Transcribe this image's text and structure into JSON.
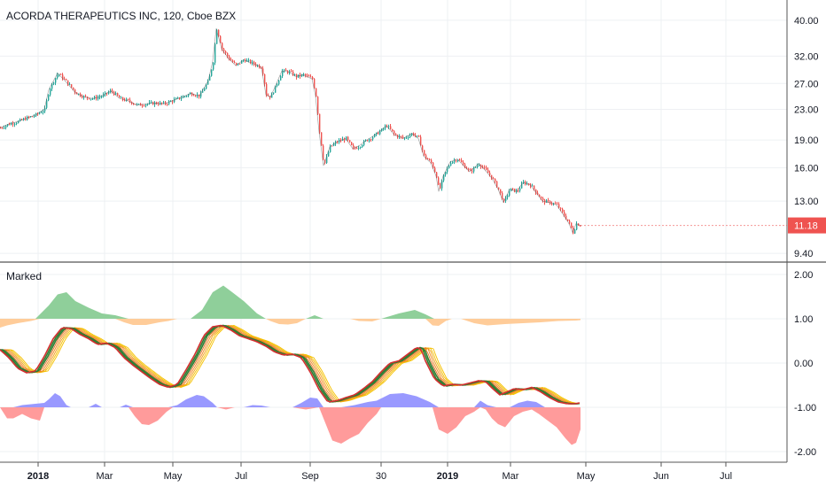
{
  "chart_data": [
    {
      "type": "candlestick",
      "title": "ACORDA THERAPEUTICS INC, 120, Cboe BZX",
      "y_scale": "log",
      "y_ticks": [
        "40.00",
        "32.00",
        "27.00",
        "23.00",
        "19.00",
        "16.00",
        "13.00",
        "9.40"
      ],
      "y_tick_values": [
        40,
        32,
        27,
        23,
        19,
        16,
        13,
        9.4
      ],
      "ylim": [
        9.1,
        42
      ],
      "last_price": "11.18",
      "last_price_value": 11.18,
      "close_path": [
        [
          0,
          20.5
        ],
        [
          10,
          21.0
        ],
        [
          20,
          21.3
        ],
        [
          30,
          21.8
        ],
        [
          40,
          22.2
        ],
        [
          50,
          23.0
        ],
        [
          55,
          26.0
        ],
        [
          65,
          28.8
        ],
        [
          75,
          27.2
        ],
        [
          85,
          25.5
        ],
        [
          95,
          24.8
        ],
        [
          105,
          24.6
        ],
        [
          115,
          25.0
        ],
        [
          125,
          25.8
        ],
        [
          135,
          24.6
        ],
        [
          145,
          24.2
        ],
        [
          155,
          23.6
        ],
        [
          165,
          23.8
        ],
        [
          175,
          23.9
        ],
        [
          185,
          23.8
        ],
        [
          195,
          24.3
        ],
        [
          205,
          24.8
        ],
        [
          215,
          25.4
        ],
        [
          225,
          25.0
        ],
        [
          235,
          27.5
        ],
        [
          240,
          31.0
        ],
        [
          244,
          38.0
        ],
        [
          250,
          33.5
        ],
        [
          258,
          31.5
        ],
        [
          266,
          30.2
        ],
        [
          275,
          31.3
        ],
        [
          285,
          30.6
        ],
        [
          295,
          29.8
        ],
        [
          300,
          25.2
        ],
        [
          305,
          24.8
        ],
        [
          312,
          27.0
        ],
        [
          318,
          29.2
        ],
        [
          326,
          29.0
        ],
        [
          334,
          28.2
        ],
        [
          342,
          28.5
        ],
        [
          352,
          27.8
        ],
        [
          356,
          25.0
        ],
        [
          360,
          20.0
        ],
        [
          365,
          16.2
        ],
        [
          372,
          18.2
        ],
        [
          380,
          18.8
        ],
        [
          390,
          19.2
        ],
        [
          398,
          18.0
        ],
        [
          405,
          18.3
        ],
        [
          412,
          18.9
        ],
        [
          420,
          19.4
        ],
        [
          430,
          20.2
        ],
        [
          436,
          20.8
        ],
        [
          445,
          19.6
        ],
        [
          455,
          19.2
        ],
        [
          465,
          19.8
        ],
        [
          472,
          19.2
        ],
        [
          478,
          17.2
        ],
        [
          486,
          16.5
        ],
        [
          492,
          15.2
        ],
        [
          495,
          13.8
        ],
        [
          500,
          15.2
        ],
        [
          508,
          16.6
        ],
        [
          516,
          16.9
        ],
        [
          522,
          16.3
        ],
        [
          530,
          15.6
        ],
        [
          540,
          16.4
        ],
        [
          546,
          15.9
        ],
        [
          555,
          15.0
        ],
        [
          562,
          14.0
        ],
        [
          568,
          12.9
        ],
        [
          575,
          14.0
        ],
        [
          583,
          13.8
        ],
        [
          590,
          14.6
        ],
        [
          598,
          14.4
        ],
        [
          605,
          13.7
        ],
        [
          612,
          13.0
        ],
        [
          620,
          12.9
        ],
        [
          628,
          12.7
        ],
        [
          635,
          12.0
        ],
        [
          642,
          11.3
        ],
        [
          646,
          10.7
        ],
        [
          650,
          11.3
        ],
        [
          655,
          11.18
        ]
      ]
    },
    {
      "type": "oscillator",
      "title": "Marked",
      "y_ticks": [
        "2.00",
        "1.00",
        "0.00",
        "-1.00",
        "-2.00"
      ],
      "y_tick_values": [
        2,
        1,
        0,
        -1,
        -2
      ],
      "ylim": [
        -2.2,
        2.2
      ],
      "green_area": [
        [
          0,
          1.0
        ],
        [
          40,
          1.0
        ],
        [
          55,
          1.3
        ],
        [
          65,
          1.55
        ],
        [
          75,
          1.6
        ],
        [
          85,
          1.4
        ],
        [
          100,
          1.25
        ],
        [
          115,
          1.12
        ],
        [
          130,
          1.08
        ],
        [
          145,
          1.0
        ],
        [
          215,
          1.0
        ],
        [
          228,
          1.2
        ],
        [
          240,
          1.6
        ],
        [
          252,
          1.75
        ],
        [
          262,
          1.6
        ],
        [
          275,
          1.4
        ],
        [
          290,
          1.12
        ],
        [
          300,
          1.0
        ],
        [
          345,
          1.0
        ],
        [
          355,
          1.08
        ],
        [
          365,
          1.0
        ],
        [
          430,
          1.0
        ],
        [
          450,
          1.12
        ],
        [
          468,
          1.2
        ],
        [
          480,
          1.1
        ],
        [
          490,
          1.0
        ],
        [
          655,
          1.0
        ]
      ],
      "orange_area": [
        [
          0,
          0.8
        ],
        [
          8,
          0.85
        ],
        [
          20,
          0.9
        ],
        [
          35,
          0.95
        ],
        [
          45,
          1.0
        ],
        [
          130,
          1.0
        ],
        [
          140,
          0.92
        ],
        [
          150,
          0.86
        ],
        [
          165,
          0.86
        ],
        [
          180,
          0.92
        ],
        [
          190,
          0.95
        ],
        [
          200,
          1.0
        ],
        [
          300,
          1.0
        ],
        [
          305,
          0.95
        ],
        [
          315,
          0.88
        ],
        [
          325,
          0.87
        ],
        [
          335,
          0.9
        ],
        [
          345,
          1.0
        ],
        [
          395,
          1.0
        ],
        [
          405,
          0.95
        ],
        [
          420,
          0.94
        ],
        [
          430,
          1.0
        ],
        [
          480,
          1.0
        ],
        [
          488,
          0.85
        ],
        [
          495,
          0.84
        ],
        [
          503,
          0.95
        ],
        [
          510,
          1.0
        ],
        [
          520,
          1.0
        ],
        [
          535,
          0.9
        ],
        [
          550,
          0.85
        ],
        [
          570,
          0.88
        ],
        [
          590,
          0.9
        ],
        [
          610,
          0.92
        ],
        [
          630,
          0.95
        ],
        [
          650,
          0.96
        ],
        [
          655,
          0.97
        ]
      ],
      "blue_area": [
        [
          0,
          -1.0
        ],
        [
          15,
          -1.0
        ],
        [
          25,
          -0.95
        ],
        [
          40,
          -0.92
        ],
        [
          50,
          -0.9
        ],
        [
          55,
          -0.82
        ],
        [
          62,
          -0.68
        ],
        [
          68,
          -0.75
        ],
        [
          75,
          -0.95
        ],
        [
          80,
          -1.0
        ],
        [
          100,
          -1.0
        ],
        [
          108,
          -0.92
        ],
        [
          115,
          -1.0
        ],
        [
          135,
          -1.0
        ],
        [
          142,
          -0.94
        ],
        [
          150,
          -1.0
        ],
        [
          190,
          -1.0
        ],
        [
          200,
          -0.95
        ],
        [
          210,
          -0.82
        ],
        [
          222,
          -0.72
        ],
        [
          230,
          -0.75
        ],
        [
          240,
          -0.9
        ],
        [
          245,
          -1.0
        ],
        [
          275,
          -1.0
        ],
        [
          285,
          -0.95
        ],
        [
          295,
          -0.96
        ],
        [
          305,
          -1.0
        ],
        [
          330,
          -1.0
        ],
        [
          340,
          -0.9
        ],
        [
          350,
          -0.78
        ],
        [
          358,
          -0.8
        ],
        [
          365,
          -1.0
        ],
        [
          385,
          -1.0
        ],
        [
          400,
          -0.95
        ],
        [
          415,
          -0.88
        ],
        [
          425,
          -0.85
        ],
        [
          440,
          -0.7
        ],
        [
          455,
          -0.68
        ],
        [
          470,
          -0.75
        ],
        [
          485,
          -0.88
        ],
        [
          495,
          -1.0
        ],
        [
          535,
          -1.0
        ],
        [
          542,
          -0.85
        ],
        [
          550,
          -0.95
        ],
        [
          560,
          -1.0
        ],
        [
          575,
          -1.0
        ],
        [
          585,
          -0.9
        ],
        [
          595,
          -0.85
        ],
        [
          605,
          -0.88
        ],
        [
          615,
          -1.0
        ],
        [
          655,
          -1.0
        ]
      ],
      "red_area": [
        [
          0,
          -1.0
        ],
        [
          8,
          -1.25
        ],
        [
          15,
          -1.25
        ],
        [
          25,
          -1.15
        ],
        [
          35,
          -1.25
        ],
        [
          45,
          -1.3
        ],
        [
          50,
          -1.0
        ],
        [
          145,
          -1.0
        ],
        [
          152,
          -1.2
        ],
        [
          160,
          -1.38
        ],
        [
          168,
          -1.4
        ],
        [
          178,
          -1.3
        ],
        [
          188,
          -1.1
        ],
        [
          195,
          -1.0
        ],
        [
          245,
          -1.0
        ],
        [
          255,
          -1.05
        ],
        [
          265,
          -1.0
        ],
        [
          330,
          -1.0
        ],
        [
          345,
          -1.05
        ],
        [
          360,
          -1.0
        ],
        [
          366,
          -1.3
        ],
        [
          375,
          -1.75
        ],
        [
          385,
          -1.82
        ],
        [
          395,
          -1.7
        ],
        [
          405,
          -1.6
        ],
        [
          415,
          -1.35
        ],
        [
          425,
          -1.15
        ],
        [
          430,
          -1.0
        ],
        [
          488,
          -1.0
        ],
        [
          495,
          -1.5
        ],
        [
          505,
          -1.6
        ],
        [
          515,
          -1.45
        ],
        [
          525,
          -1.2
        ],
        [
          535,
          -1.1
        ],
        [
          542,
          -1.0
        ],
        [
          548,
          -1.05
        ],
        [
          555,
          -1.25
        ],
        [
          562,
          -1.38
        ],
        [
          570,
          -1.45
        ],
        [
          580,
          -1.2
        ],
        [
          590,
          -1.1
        ],
        [
          600,
          -1.05
        ],
        [
          608,
          -1.15
        ],
        [
          618,
          -1.3
        ],
        [
          628,
          -1.45
        ],
        [
          638,
          -1.7
        ],
        [
          645,
          -1.85
        ],
        [
          650,
          -1.8
        ],
        [
          655,
          -1.5
        ]
      ],
      "ribbon": [
        [
          0,
          0.3
        ],
        [
          10,
          0.12
        ],
        [
          20,
          -0.12
        ],
        [
          30,
          -0.22
        ],
        [
          40,
          -0.18
        ],
        [
          50,
          0.15
        ],
        [
          60,
          0.55
        ],
        [
          70,
          0.8
        ],
        [
          80,
          0.78
        ],
        [
          90,
          0.65
        ],
        [
          100,
          0.55
        ],
        [
          110,
          0.42
        ],
        [
          120,
          0.45
        ],
        [
          130,
          0.35
        ],
        [
          140,
          0.12
        ],
        [
          150,
          -0.05
        ],
        [
          160,
          -0.2
        ],
        [
          170,
          -0.35
        ],
        [
          180,
          -0.48
        ],
        [
          190,
          -0.55
        ],
        [
          200,
          -0.48
        ],
        [
          210,
          -0.15
        ],
        [
          220,
          0.2
        ],
        [
          230,
          0.62
        ],
        [
          240,
          0.82
        ],
        [
          250,
          0.85
        ],
        [
          260,
          0.75
        ],
        [
          270,
          0.62
        ],
        [
          280,
          0.55
        ],
        [
          290,
          0.48
        ],
        [
          300,
          0.38
        ],
        [
          310,
          0.25
        ],
        [
          320,
          0.18
        ],
        [
          330,
          0.2
        ],
        [
          340,
          0.12
        ],
        [
          350,
          -0.2
        ],
        [
          360,
          -0.6
        ],
        [
          370,
          -0.88
        ],
        [
          380,
          -0.85
        ],
        [
          390,
          -0.78
        ],
        [
          400,
          -0.72
        ],
        [
          410,
          -0.58
        ],
        [
          420,
          -0.42
        ],
        [
          430,
          -0.2
        ],
        [
          440,
          0.0
        ],
        [
          450,
          0.05
        ],
        [
          460,
          0.2
        ],
        [
          470,
          0.35
        ],
        [
          475,
          0.32
        ],
        [
          480,
          0.05
        ],
        [
          490,
          -0.35
        ],
        [
          500,
          -0.52
        ],
        [
          510,
          -0.48
        ],
        [
          520,
          -0.5
        ],
        [
          530,
          -0.45
        ],
        [
          540,
          -0.4
        ],
        [
          548,
          -0.42
        ],
        [
          556,
          -0.58
        ],
        [
          564,
          -0.72
        ],
        [
          572,
          -0.65
        ],
        [
          580,
          -0.58
        ],
        [
          590,
          -0.6
        ],
        [
          600,
          -0.55
        ],
        [
          610,
          -0.65
        ],
        [
          620,
          -0.78
        ],
        [
          630,
          -0.88
        ],
        [
          640,
          -0.92
        ],
        [
          648,
          -0.92
        ],
        [
          655,
          -0.9
        ]
      ]
    }
  ],
  "x_axis": {
    "labels": [
      {
        "text": "2018",
        "bold": true,
        "x": 43
      },
      {
        "text": "Mar",
        "bold": false,
        "x": 118
      },
      {
        "text": "May",
        "bold": false,
        "x": 195
      },
      {
        "text": "Jul",
        "bold": false,
        "x": 272
      },
      {
        "text": "Sep",
        "bold": false,
        "x": 350
      },
      {
        "text": "30",
        "bold": false,
        "x": 430
      },
      {
        "text": "2019",
        "bold": true,
        "x": 505
      },
      {
        "text": "Mar",
        "bold": false,
        "x": 576
      },
      {
        "text": "May",
        "bold": false,
        "x": 661
      },
      {
        "text": "Jun",
        "bold": false,
        "x": 746
      },
      {
        "text": "Jul",
        "bold": false,
        "x": 819
      }
    ]
  },
  "colors": {
    "up": "#26a69a",
    "down": "#ef5350",
    "price_line": "#555555",
    "last_price_badge": "#ef5350",
    "green_fill": "#8fcf9a",
    "orange_fill": "#ffcc99",
    "blue_fill": "#9999ff",
    "red_fill": "#ff9b9b",
    "ribbon_fast": "#d32f2f",
    "ribbon_mid": "#2e7d32",
    "ribbon_slow": "#f5c000",
    "grid": "#eef0f3",
    "axis": "#b0b3b8"
  }
}
